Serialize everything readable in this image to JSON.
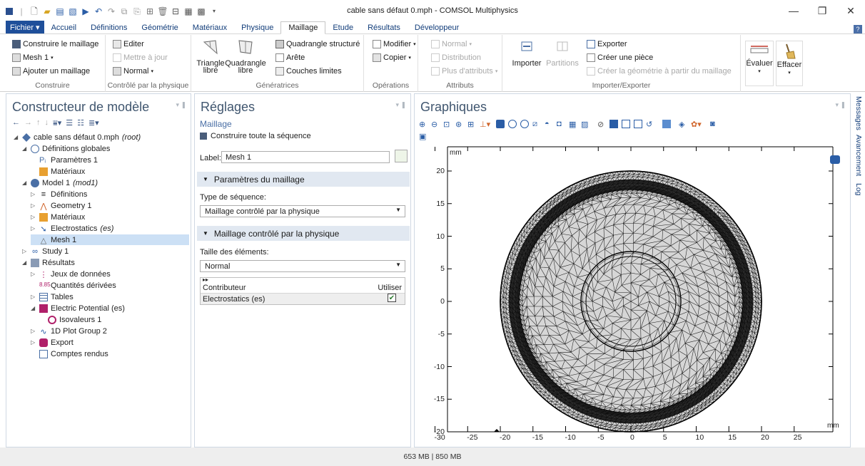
{
  "window": {
    "title": "cable sans défaut 0.mph - COMSOL Multiphysics",
    "minimize": "—",
    "maximize": "❐",
    "close": "✕"
  },
  "menu": {
    "file": "Fichier ▾",
    "tabs": [
      "Accueil",
      "Définitions",
      "Géométrie",
      "Matériaux",
      "Physique",
      "Maillage",
      "Etude",
      "Résultats",
      "Développeur"
    ],
    "active": "Maillage",
    "help": "?"
  },
  "ribbon": {
    "construire": {
      "label": "Construire",
      "build_mesh": "Construire le maillage",
      "mesh1": "Mesh 1",
      "add_mesh": "Ajouter un maillage"
    },
    "controle": {
      "label": "Contrôlé par la physique",
      "edit": "Editer",
      "update": "Mettre à jour",
      "normal": "Normal"
    },
    "generatrices": {
      "label": "Génératrices",
      "free_tri_1": "Triangle",
      "free_tri_2": "libre",
      "free_quad_1": "Quadrangle",
      "free_quad_2": "libre",
      "mapped": "Quadrangle structuré",
      "edge": "Arête",
      "boundary_layers": "Couches limites"
    },
    "operations": {
      "label": "Opérations",
      "modify": "Modifier",
      "copy": "Copier"
    },
    "attributs": {
      "label": "Attributs",
      "normal": "Normal",
      "distribution": "Distribution",
      "more": "Plus d'attributs"
    },
    "import_export": {
      "label": "Importer/Exporter",
      "import": "Importer",
      "partitions": "Partitions",
      "export": "Exporter",
      "create_piece": "Créer une pièce",
      "create_geom": "Créer la géométrie à partir du maillage"
    },
    "evaluate": "Évaluer",
    "clear": "Effacer"
  },
  "model_builder": {
    "title": "Constructeur de modèle",
    "root": "cable sans défaut 0.mph",
    "root_tag": "(root)",
    "items": [
      {
        "label": "Définitions globales"
      },
      {
        "label": "Paramètres 1"
      },
      {
        "label": "Matériaux"
      },
      {
        "label": "Model 1",
        "tag": "(mod1)"
      },
      {
        "label": "Définitions"
      },
      {
        "label": "Geometry 1"
      },
      {
        "label": "Matériaux"
      },
      {
        "label": "Electrostatics",
        "tag": "(es)"
      },
      {
        "label": "Mesh 1"
      },
      {
        "label": "Study 1"
      },
      {
        "label": "Résultats"
      },
      {
        "label": "Jeux de données"
      },
      {
        "label": "Quantités dérivées"
      },
      {
        "label": "Tables"
      },
      {
        "label": "Electric Potential (es)"
      },
      {
        "label": "Isovaleurs 1"
      },
      {
        "label": "1D Plot Group 2"
      },
      {
        "label": "Export"
      },
      {
        "label": "Comptes rendus"
      }
    ]
  },
  "settings": {
    "title": "Réglages",
    "subtitle": "Maillage",
    "build_all": "Construire toute la séquence",
    "label_caption": "Label:",
    "label_value": "Mesh 1",
    "sec1": "Paramètres du maillage",
    "seq_type_label": "Type de séquence:",
    "seq_type_value": "Maillage contrôlé par la physique",
    "sec2": "Maillage contrôlé par la physique",
    "elem_size_label": "Taille des éléments:",
    "elem_size_value": "Normal",
    "table": {
      "col1": "Contributeur",
      "col2": "Utiliser",
      "row1": "Electrostatics (es)",
      "check": "✔"
    }
  },
  "graphics": {
    "title": "Graphiques",
    "unit_top": "mm",
    "unit_right": "mm",
    "y_ticks": [
      "20",
      "15",
      "10",
      "5",
      "0",
      "-5",
      "-10",
      "-15",
      "-20"
    ],
    "x_ticks": [
      "-30",
      "-25",
      "-20",
      "-15",
      "-10",
      "-5",
      "0",
      "5",
      "10",
      "15",
      "20",
      "25"
    ]
  },
  "side_tabs": [
    "Messages",
    "Avancement",
    "Log"
  ],
  "status": "653 MB | 850 MB",
  "colors": {
    "file_btn": "#1f4f9a",
    "section_bg": "#e1e8f1",
    "tree_accent": "#b0206a"
  }
}
